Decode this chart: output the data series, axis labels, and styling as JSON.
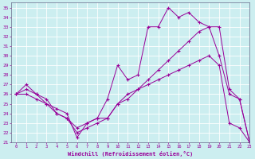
{
  "xlabel": "Windchill (Refroidissement éolien,°C)",
  "background_color": "#cceef0",
  "line_color": "#990099",
  "xlim": [
    -0.5,
    23
  ],
  "ylim": [
    21,
    35.5
  ],
  "yticks": [
    21,
    22,
    23,
    24,
    25,
    26,
    27,
    28,
    29,
    30,
    31,
    32,
    33,
    34,
    35
  ],
  "xticks": [
    0,
    1,
    2,
    3,
    4,
    5,
    6,
    7,
    8,
    9,
    10,
    11,
    12,
    13,
    14,
    15,
    16,
    17,
    18,
    19,
    20,
    21,
    22,
    23
  ],
  "series": [
    {
      "x": [
        0,
        1,
        2,
        3,
        4,
        5,
        6,
        7,
        8,
        9,
        10,
        11,
        12,
        13,
        14,
        15,
        16,
        17,
        18,
        19,
        20,
        21,
        22,
        23
      ],
      "y": [
        26,
        27,
        26,
        25,
        24.5,
        24,
        21.5,
        23,
        23.5,
        25.5,
        29,
        27.5,
        28,
        33,
        33,
        35,
        34,
        34.5,
        33.5,
        33,
        30,
        26,
        25.5,
        21
      ]
    },
    {
      "x": [
        0,
        1,
        2,
        3,
        4,
        5,
        6,
        7,
        8,
        9,
        10,
        11,
        12,
        13,
        14,
        15,
        16,
        17,
        18,
        19,
        20,
        21,
        22,
        23
      ],
      "y": [
        26,
        26.5,
        26,
        25.5,
        24,
        23.5,
        22,
        22.5,
        23,
        23.5,
        25,
        25.5,
        26.5,
        27.5,
        28.5,
        29.5,
        30.5,
        31.5,
        32.5,
        33,
        33,
        26.5,
        25.5,
        21
      ]
    },
    {
      "x": [
        0,
        1,
        2,
        3,
        4,
        5,
        6,
        7,
        8,
        9,
        10,
        11,
        12,
        13,
        14,
        15,
        16,
        17,
        18,
        19,
        20,
        21,
        22,
        23
      ],
      "y": [
        26,
        26,
        25.5,
        25,
        24,
        23.5,
        22.5,
        23,
        23.5,
        23.5,
        25,
        26,
        26.5,
        27,
        27.5,
        28,
        28.5,
        29,
        29.5,
        30,
        29,
        23,
        22.5,
        21
      ]
    }
  ]
}
